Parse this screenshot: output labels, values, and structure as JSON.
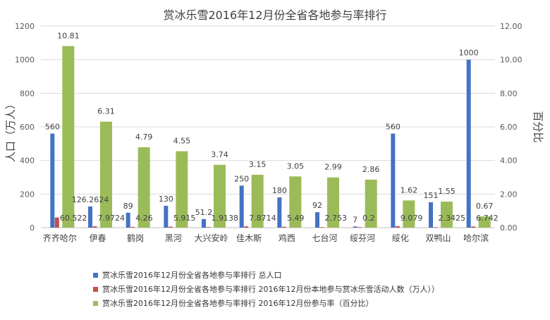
{
  "chart_data": {
    "type": "bar",
    "title": "赏冰乐雪2016年12月份全省各地参与率排行",
    "ylabel": "人口（万人）",
    "y2label": "百分比",
    "ylim": [
      0,
      1200
    ],
    "y2lim": [
      0,
      12
    ],
    "yticks": [
      "0",
      "200",
      "400",
      "600",
      "800",
      "1000",
      "1200"
    ],
    "y2ticks": [
      "0.00",
      "2.00",
      "4.00",
      "6.00",
      "8.00",
      "10.00",
      "12.00"
    ],
    "categories": [
      "齐齐哈尔",
      "伊春",
      "鹤岗",
      "黑河",
      "大兴安岭",
      "佳木斯",
      "鸡西",
      "七台河",
      "绥芬河",
      "绥化",
      "双鸭山",
      "哈尔滨"
    ],
    "series": [
      {
        "name": "赏冰乐雪2016年12月份全省各地参与率排行 总人口",
        "axis": "left",
        "color": "#4472C4",
        "values": [
          560,
          126.2624,
          89,
          130,
          51.2,
          250,
          180,
          92,
          7,
          560,
          151,
          1000
        ],
        "labels": [
          "560",
          "126.2624",
          "89",
          "130",
          "51.2",
          "250",
          "180",
          "92",
          "7",
          "560",
          "151",
          "1000"
        ]
      },
      {
        "name": "赏冰乐雪2016年12月份全省各地参与率排行 2016年12月份本地参与赏冰乐雪活动人数（万人））",
        "axis": "left",
        "color": "#C0504D",
        "values": [
          60.522,
          7.9724,
          4.26,
          5.915,
          1.9138,
          7.8714,
          5.49,
          2.753,
          0.2,
          9.079,
          2.3425,
          6.742
        ],
        "labels": [
          "60.522",
          "7.9724",
          "4.26",
          "5.915",
          "1.9138",
          "7.8714",
          "5.49",
          "2.753",
          "0.2",
          "9.079",
          "2.3425",
          "6.742"
        ]
      },
      {
        "name": "赏冰乐雪2016年12月份全省各地参与率排行 2016年12月份参与率（百分比）",
        "axis": "right",
        "color": "#9BBB59",
        "values": [
          10.81,
          6.31,
          4.79,
          4.55,
          3.74,
          3.15,
          3.05,
          2.99,
          2.86,
          1.62,
          1.55,
          0.67
        ],
        "labels": [
          "10.81",
          "6.31",
          "4.79",
          "4.55",
          "3.74",
          "3.15",
          "3.05",
          "2.99",
          "2.86",
          "1.62",
          "1.55",
          "0.67"
        ]
      }
    ],
    "grid": true,
    "legend": "bottom"
  }
}
